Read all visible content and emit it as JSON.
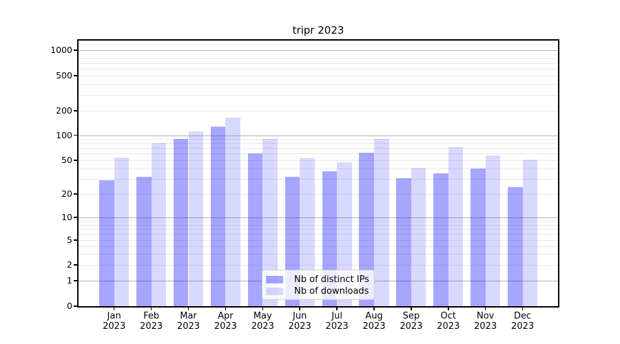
{
  "title": "tripr 2023",
  "y_axis": {
    "scale": "symlog",
    "tick_values": [
      1000,
      500,
      200,
      100,
      50,
      20,
      10,
      5,
      2,
      1,
      0
    ]
  },
  "x_axis": {
    "months": [
      "Jan",
      "Feb",
      "Mar",
      "Apr",
      "May",
      "Jun",
      "Jul",
      "Aug",
      "Sep",
      "Oct",
      "Nov",
      "Dec"
    ],
    "year": "2023"
  },
  "legend": {
    "items": [
      {
        "label": "Nb of distinct IPs",
        "color": "rgba(0,0,255,0.35)"
      },
      {
        "label": "Nb of downloads",
        "color": "rgba(0,0,255,0.15)"
      }
    ]
  },
  "colors": {
    "bar_distinct_ips": "rgba(0,0,255,0.35)",
    "bar_downloads": "rgba(0,0,255,0.15)",
    "grid_major": "#b3b3b3",
    "grid_minor": "#e8e8e8",
    "spine": "#000000"
  },
  "chart_data": {
    "type": "bar",
    "title": "tripr 2023",
    "categories": [
      "Jan 2023",
      "Feb 2023",
      "Mar 2023",
      "Apr 2023",
      "May 2023",
      "Jun 2023",
      "Jul 2023",
      "Aug 2023",
      "Sep 2023",
      "Oct 2023",
      "Nov 2023",
      "Dec 2023"
    ],
    "series": [
      {
        "name": "Nb of distinct IPs",
        "values": [
          29,
          32,
          90,
          128,
          61,
          32,
          37,
          62,
          31,
          35,
          40,
          24
        ]
      },
      {
        "name": "Nb of downloads",
        "values": [
          54,
          80,
          112,
          166,
          90,
          53,
          47,
          90,
          41,
          72,
          57,
          51
        ]
      }
    ],
    "yscale": "symlog",
    "y_ticks": [
      0,
      1,
      2,
      5,
      10,
      20,
      50,
      100,
      200,
      500,
      1000
    ],
    "ylim": [
      0,
      1300
    ],
    "xlabel": "",
    "ylabel": "",
    "grid": true,
    "legend_position": "lower center"
  }
}
